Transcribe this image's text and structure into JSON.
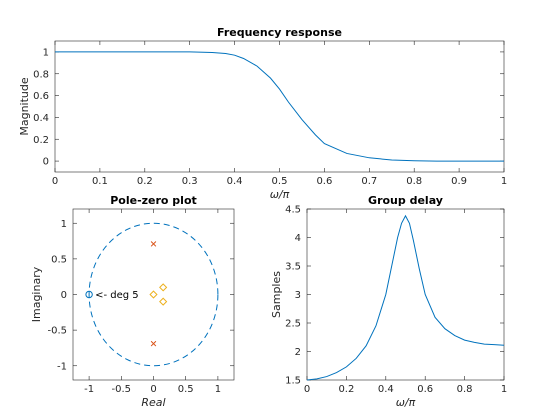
{
  "chart_data": [
    {
      "type": "line",
      "title": "Frequency response",
      "xlabel": "ω/π",
      "ylabel": "Magnitude",
      "xlim": [
        0,
        1
      ],
      "ylim": [
        -0.1,
        1.1
      ],
      "xticks": [
        "0",
        "0.1",
        "0.2",
        "0.3",
        "0.4",
        "0.5",
        "0.6",
        "0.7",
        "0.8",
        "0.9",
        "1"
      ],
      "yticks": [
        "0",
        "0.2",
        "0.4",
        "0.6",
        "0.8",
        "1"
      ],
      "grid": false,
      "color": "#0072bd",
      "x": [
        0,
        0.3,
        0.35,
        0.38,
        0.4,
        0.42,
        0.45,
        0.48,
        0.5,
        0.52,
        0.55,
        0.58,
        0.6,
        0.65,
        0.7,
        0.75,
        0.8,
        0.85,
        0.9,
        1.0
      ],
      "y": [
        1.0,
        1.0,
        0.995,
        0.985,
        0.97,
        0.94,
        0.87,
        0.76,
        0.66,
        0.54,
        0.38,
        0.24,
        0.16,
        0.07,
        0.03,
        0.01,
        0.003,
        0.0,
        0.0,
        0.0
      ]
    },
    {
      "type": "scatter",
      "title": "Pole-zero plot",
      "xlabel": "Real",
      "ylabel": "Imaginary",
      "xlim": [
        -1.25,
        1.25
      ],
      "ylim": [
        -1.2,
        1.2
      ],
      "xticks": [
        "-1",
        "-0.5",
        "0",
        "0.5",
        "1"
      ],
      "yticks": [
        "-1",
        "-0.5",
        "0",
        "0.5",
        "1"
      ],
      "grid": false,
      "unit_circle_color": "#0072bd",
      "zero_color": "#0072bd",
      "zeros_multiple": [
        {
          "x": -1.0,
          "y": 0.0,
          "label": "<- deg 5"
        }
      ],
      "zeros_other_color": "#edb120",
      "zeros_other": [
        {
          "x": 0.0,
          "y": 0.0
        },
        {
          "x": 0.15,
          "y": 0.1
        },
        {
          "x": 0.15,
          "y": -0.1
        }
      ],
      "poles_color": "#d95319",
      "poles": [
        {
          "x": 0.0,
          "y": 0.71
        },
        {
          "x": 0.0,
          "y": -0.69
        }
      ]
    },
    {
      "type": "line",
      "title": "Group delay",
      "xlabel": "ω/π",
      "ylabel": "Samples",
      "xlim": [
        0,
        1
      ],
      "ylim": [
        1.5,
        4.5
      ],
      "xticks": [
        "0",
        "0.2",
        "0.4",
        "0.6",
        "0.8",
        "1"
      ],
      "yticks": [
        "1.5",
        "2",
        "2.5",
        "3",
        "3.5",
        "4",
        "4.5"
      ],
      "grid": false,
      "color": "#0072bd",
      "x": [
        0,
        0.05,
        0.1,
        0.15,
        0.2,
        0.25,
        0.3,
        0.35,
        0.4,
        0.43,
        0.46,
        0.48,
        0.5,
        0.52,
        0.54,
        0.57,
        0.6,
        0.65,
        0.7,
        0.75,
        0.8,
        0.85,
        0.9,
        0.95,
        1.0
      ],
      "y": [
        1.5,
        1.52,
        1.56,
        1.63,
        1.73,
        1.88,
        2.1,
        2.45,
        3.0,
        3.5,
        4.0,
        4.25,
        4.38,
        4.25,
        3.95,
        3.45,
        3.0,
        2.6,
        2.4,
        2.28,
        2.2,
        2.16,
        2.13,
        2.12,
        2.11
      ]
    }
  ]
}
